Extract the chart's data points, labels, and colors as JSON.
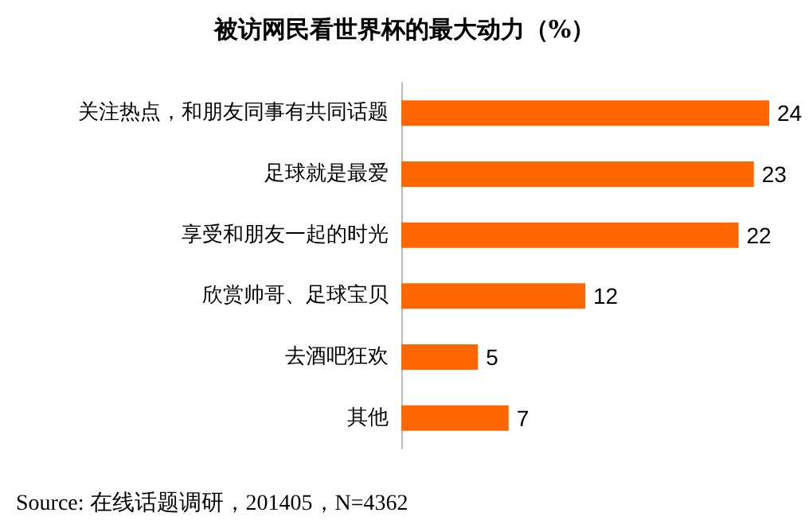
{
  "chart_data": {
    "type": "bar",
    "orientation": "horizontal",
    "title": "被访网民看世界杯的最大动力（%）",
    "categories": [
      "关注热点，和朋友同事有共同话题",
      "足球就是最爱",
      "享受和朋友一起的时光",
      "欣赏帅哥、足球宝贝",
      "去酒吧狂欢",
      "其他"
    ],
    "values": [
      24,
      23,
      22,
      12,
      5,
      7
    ],
    "color": "#ff6600",
    "data_labels": true,
    "annotations": [
      "Source: 在线话题调研，201405，N=4362"
    ]
  }
}
